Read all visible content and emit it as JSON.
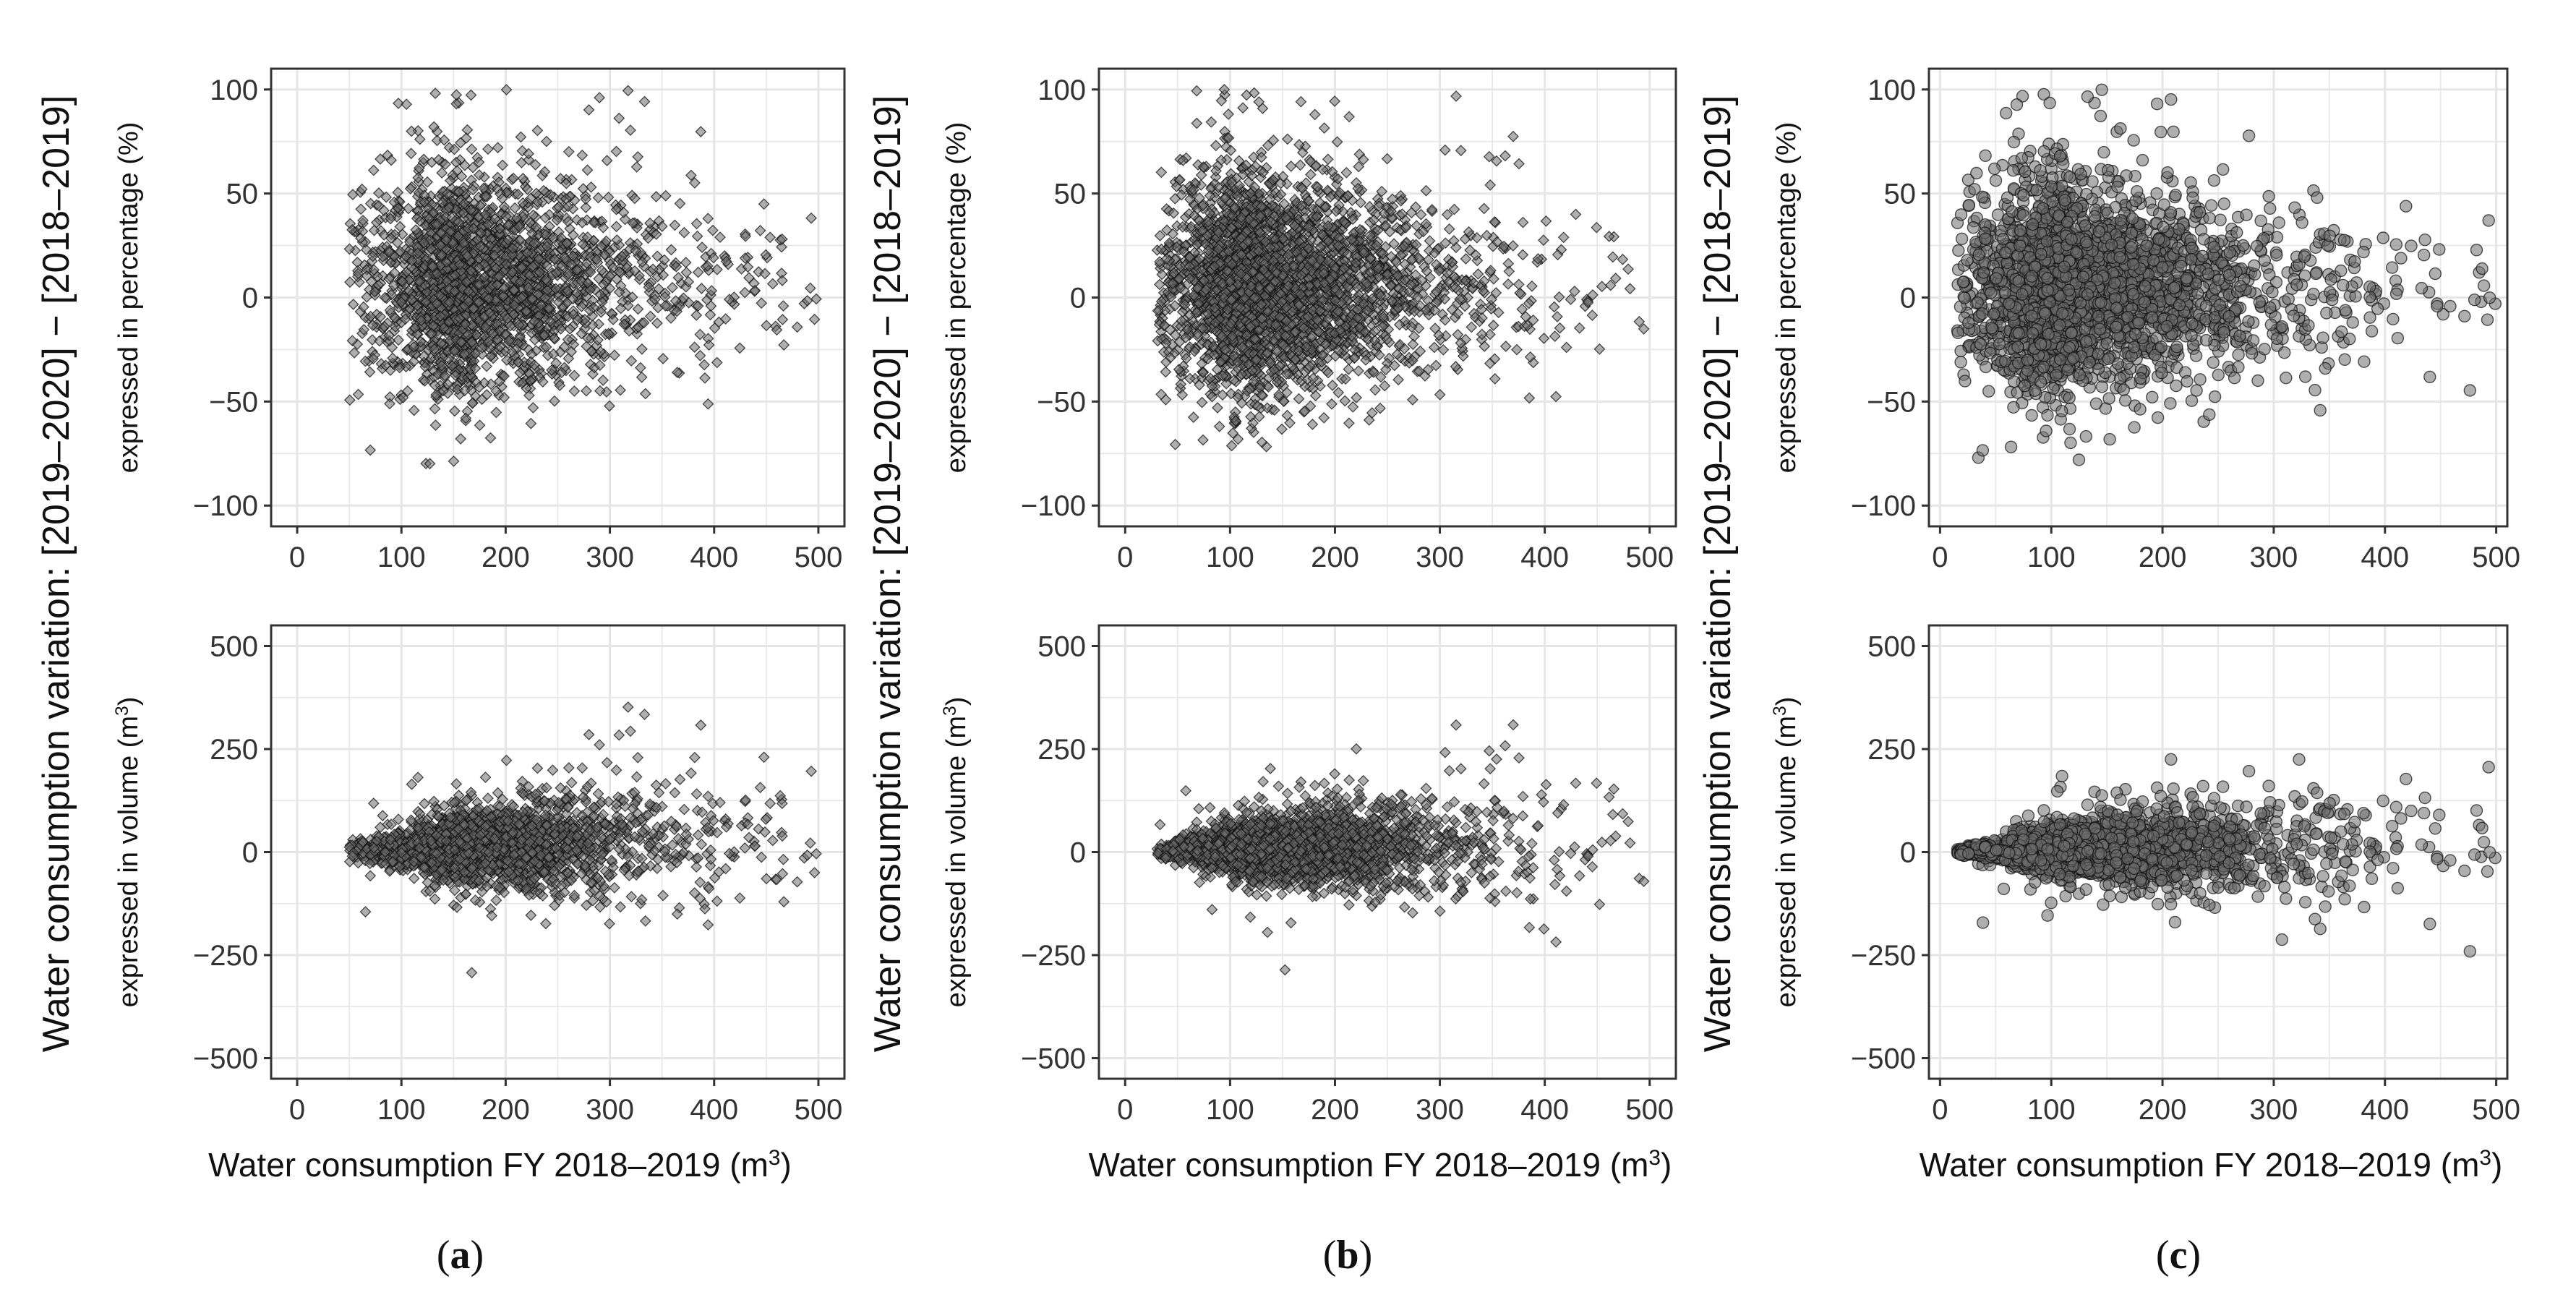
{
  "chart_data": {
    "type": "scatter",
    "figure": {
      "y_title_main": "Water consumption variation: [2019–2020] − [2018–2019]",
      "x_title_prefix": "Water consumption FY 2018–2019 (m",
      "x_title_sup": "3",
      "x_title_suffix": ")"
    },
    "rows": [
      {
        "row_title_prefix": "expressed in percentage (%)",
        "row_title_sup": "",
        "row_title_suffix": "",
        "ylim": [
          -110,
          110
        ],
        "yticks": [
          100,
          50,
          0,
          -50,
          -100
        ],
        "ytick_labels": [
          "100",
          "50",
          "0",
          "−50",
          "−100"
        ]
      },
      {
        "row_title_prefix": "expressed in volume (m",
        "row_title_sup": "3",
        "row_title_suffix": ")",
        "ylim": [
          -550,
          550
        ],
        "yticks": [
          500,
          250,
          0,
          -250,
          -500
        ],
        "ytick_labels": [
          "500",
          "250",
          "0",
          "−250",
          "−500"
        ]
      }
    ],
    "columns": [
      {
        "label_open": "(",
        "label_letter": "a",
        "label_close": ")",
        "xlim": [
          -25,
          525
        ],
        "xticks": [
          0,
          100,
          200,
          300,
          400,
          500
        ],
        "xtick_labels": [
          "0",
          "100",
          "200",
          "300",
          "400",
          "500"
        ],
        "x_min": 50,
        "x_max": 500,
        "x_mode": 170,
        "x_spread": 70,
        "point_style": "diamond",
        "point_count": 2400,
        "pct_sd": 26,
        "pct_skew": 6,
        "vol_sd_factor": 0.28,
        "seed": 11
      },
      {
        "label_open": "(",
        "label_letter": "b",
        "label_close": ")",
        "xlim": [
          -25,
          525
        ],
        "xticks": [
          0,
          100,
          200,
          300,
          400,
          500
        ],
        "xtick_labels": [
          "0",
          "100",
          "200",
          "300",
          "400",
          "500"
        ],
        "x_min": 30,
        "x_max": 500,
        "x_mode": 130,
        "x_spread": 65,
        "point_style": "diamond",
        "point_count": 3200,
        "pct_sd": 25,
        "pct_skew": 4,
        "vol_sd_factor": 0.26,
        "seed": 23
      },
      {
        "label_open": "(",
        "label_letter": "c",
        "label_close": ")",
        "xlim": [
          -10,
          510
        ],
        "xticks": [
          0,
          100,
          200,
          300,
          400,
          500
        ],
        "xtick_labels": [
          "0",
          "100",
          "200",
          "300",
          "400",
          "500"
        ],
        "x_min": 15,
        "x_max": 500,
        "x_mode": 120,
        "x_spread": 70,
        "point_style": "circle",
        "point_count": 2600,
        "pct_sd": 24,
        "pct_skew": 3,
        "vol_sd_factor": 0.25,
        "seed": 37
      }
    ],
    "colors": {
      "point_fill": "#6e6e6e",
      "point_stroke": "#111111",
      "grid": "#e6e6e6",
      "frame": "#333333"
    }
  }
}
